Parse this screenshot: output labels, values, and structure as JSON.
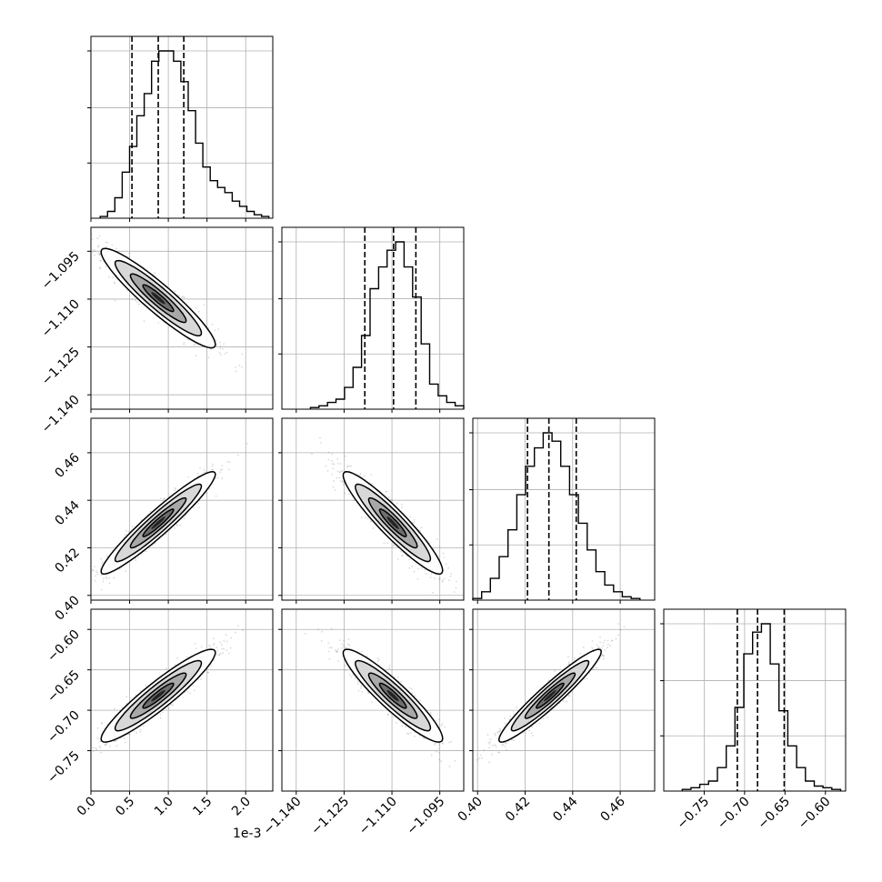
{
  "chart_data": {
    "type": "scatter",
    "subtype": "corner-plot",
    "title": "",
    "grid": true,
    "params": [
      {
        "index": 0,
        "axis_label": "",
        "offset_text": "1e-3",
        "range": [
          0.0,
          2.35
        ],
        "ticks": [
          0.0,
          0.5,
          1.0,
          1.5,
          2.0
        ],
        "tick_labels": [
          "0.0",
          "0.5",
          "1.0",
          "1.5",
          "2.0"
        ],
        "quantiles": [
          0.53,
          0.87,
          1.2
        ],
        "hist_counts": [
          1,
          4,
          12,
          27,
          42,
          60,
          73,
          92,
          98,
          98,
          92,
          80,
          63,
          44,
          30,
          22,
          18,
          15,
          10,
          7,
          4,
          2,
          1
        ],
        "mean": 0.87,
        "sd": 0.36
      },
      {
        "index": 1,
        "axis_label": "",
        "offset_text": "",
        "range": [
          -1.1445,
          -1.0875
        ],
        "ticks": [
          -1.14,
          -1.125,
          -1.11,
          -1.095
        ],
        "tick_labels": [
          "−1.140",
          "−1.125",
          "−1.110",
          "−1.095"
        ],
        "quantiles": [
          -1.1185,
          -1.1095,
          -1.1025
        ],
        "hist_counts": [
          1,
          2,
          4,
          6,
          13,
          25,
          44,
          72,
          85,
          95,
          100,
          85,
          67,
          39,
          15,
          8,
          4,
          2
        ],
        "mean": -1.1097,
        "sd": 0.0076
      },
      {
        "index": 2,
        "axis_label": "",
        "offset_text": "",
        "range": [
          0.398,
          0.4745
        ],
        "ticks": [
          0.4,
          0.42,
          0.44,
          0.46
        ],
        "tick_labels": [
          "0.40",
          "0.42",
          "0.44",
          "0.46"
        ],
        "quantiles": [
          0.421,
          0.43,
          0.4415
        ],
        "hist_counts": [
          1,
          5,
          13,
          26,
          42,
          63,
          80,
          91,
          100,
          95,
          80,
          63,
          46,
          30,
          17,
          9,
          5,
          2,
          1
        ],
        "mean": 0.4305,
        "sd": 0.0105
      },
      {
        "index": 3,
        "axis_label": "",
        "offset_text": "",
        "range": [
          -0.8,
          -0.575
        ],
        "ticks": [
          -0.75,
          -0.7,
          -0.65,
          -0.6
        ],
        "tick_labels": [
          "−0.75",
          "−0.70",
          "−0.65",
          "−0.60"
        ],
        "quantiles": [
          -0.709,
          -0.684,
          -0.651
        ],
        "hist_counts": [
          1,
          2,
          4,
          6,
          14,
          27,
          50,
          82,
          95,
          100,
          76,
          48,
          27,
          14,
          6,
          3,
          2,
          1
        ],
        "mean": -0.682,
        "sd": 0.028
      }
    ],
    "correlations": [
      {
        "x": 0,
        "y": 1,
        "r": -0.93
      },
      {
        "x": 0,
        "y": 2,
        "r": 0.95
      },
      {
        "x": 0,
        "y": 3,
        "r": 0.93
      },
      {
        "x": 1,
        "y": 2,
        "r": -0.93
      },
      {
        "x": 1,
        "y": 3,
        "r": -0.92
      },
      {
        "x": 2,
        "y": 3,
        "r": 0.95
      }
    ],
    "colors": {
      "line": "#000000",
      "grid": "#b0b0b0",
      "points": "#555555",
      "background": "#ffffff"
    }
  }
}
